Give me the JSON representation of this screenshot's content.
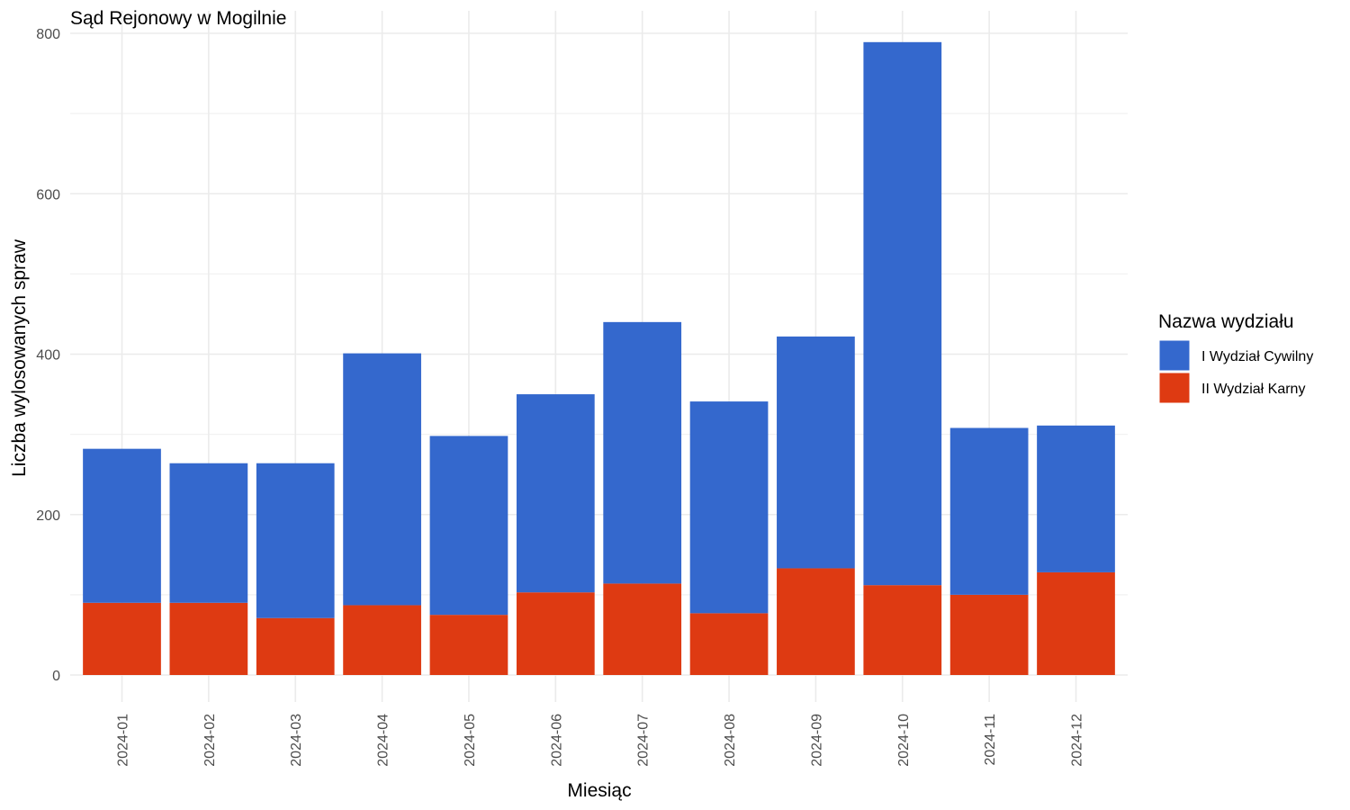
{
  "chart_data": {
    "type": "bar",
    "stacked": true,
    "title": "Sąd Rejonowy w Mogilnie",
    "xlabel": "Miesiąc",
    "ylabel": "Liczba wylosowanych spraw",
    "ylim": [
      0,
      800
    ],
    "yticks": [
      0,
      200,
      400,
      600,
      800
    ],
    "grid": true,
    "legend": {
      "title": "Nazwa wydziału",
      "position": "right"
    },
    "categories": [
      "2024-01",
      "2024-02",
      "2024-03",
      "2024-04",
      "2024-05",
      "2024-06",
      "2024-07",
      "2024-08",
      "2024-09",
      "2024-10",
      "2024-11",
      "2024-12"
    ],
    "series": [
      {
        "name": "II Wydział Karny",
        "color": "#de3a12",
        "values": [
          90,
          90,
          71,
          87,
          75,
          103,
          114,
          77,
          133,
          112,
          100,
          128
        ]
      },
      {
        "name": "I Wydział Cywilny",
        "color": "#3468cd",
        "values": [
          192,
          174,
          193,
          314,
          223,
          247,
          326,
          264,
          289,
          677,
          208,
          183
        ]
      }
    ],
    "legend_order": [
      "I Wydział Cywilny",
      "II Wydział Karny"
    ]
  }
}
